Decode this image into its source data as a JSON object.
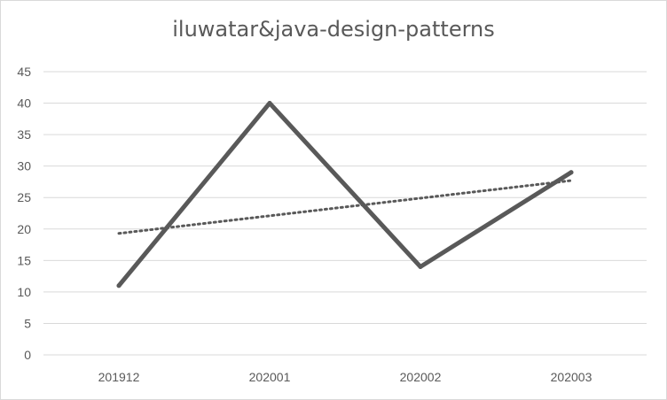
{
  "chart_data": {
    "type": "line",
    "title": "iluwatar&java-design-patterns",
    "categories": [
      "201912",
      "202001",
      "202002",
      "202003"
    ],
    "series": [
      {
        "values": [
          11,
          40,
          14,
          29
        ],
        "color": "#595959"
      }
    ],
    "trendline": {
      "kind": "linear",
      "style": "dotted",
      "color": "#595959"
    },
    "ylim": [
      0,
      45
    ],
    "yticks": [
      0,
      5,
      10,
      15,
      20,
      25,
      30,
      35,
      40,
      45
    ],
    "grid": true,
    "legend": "none"
  }
}
